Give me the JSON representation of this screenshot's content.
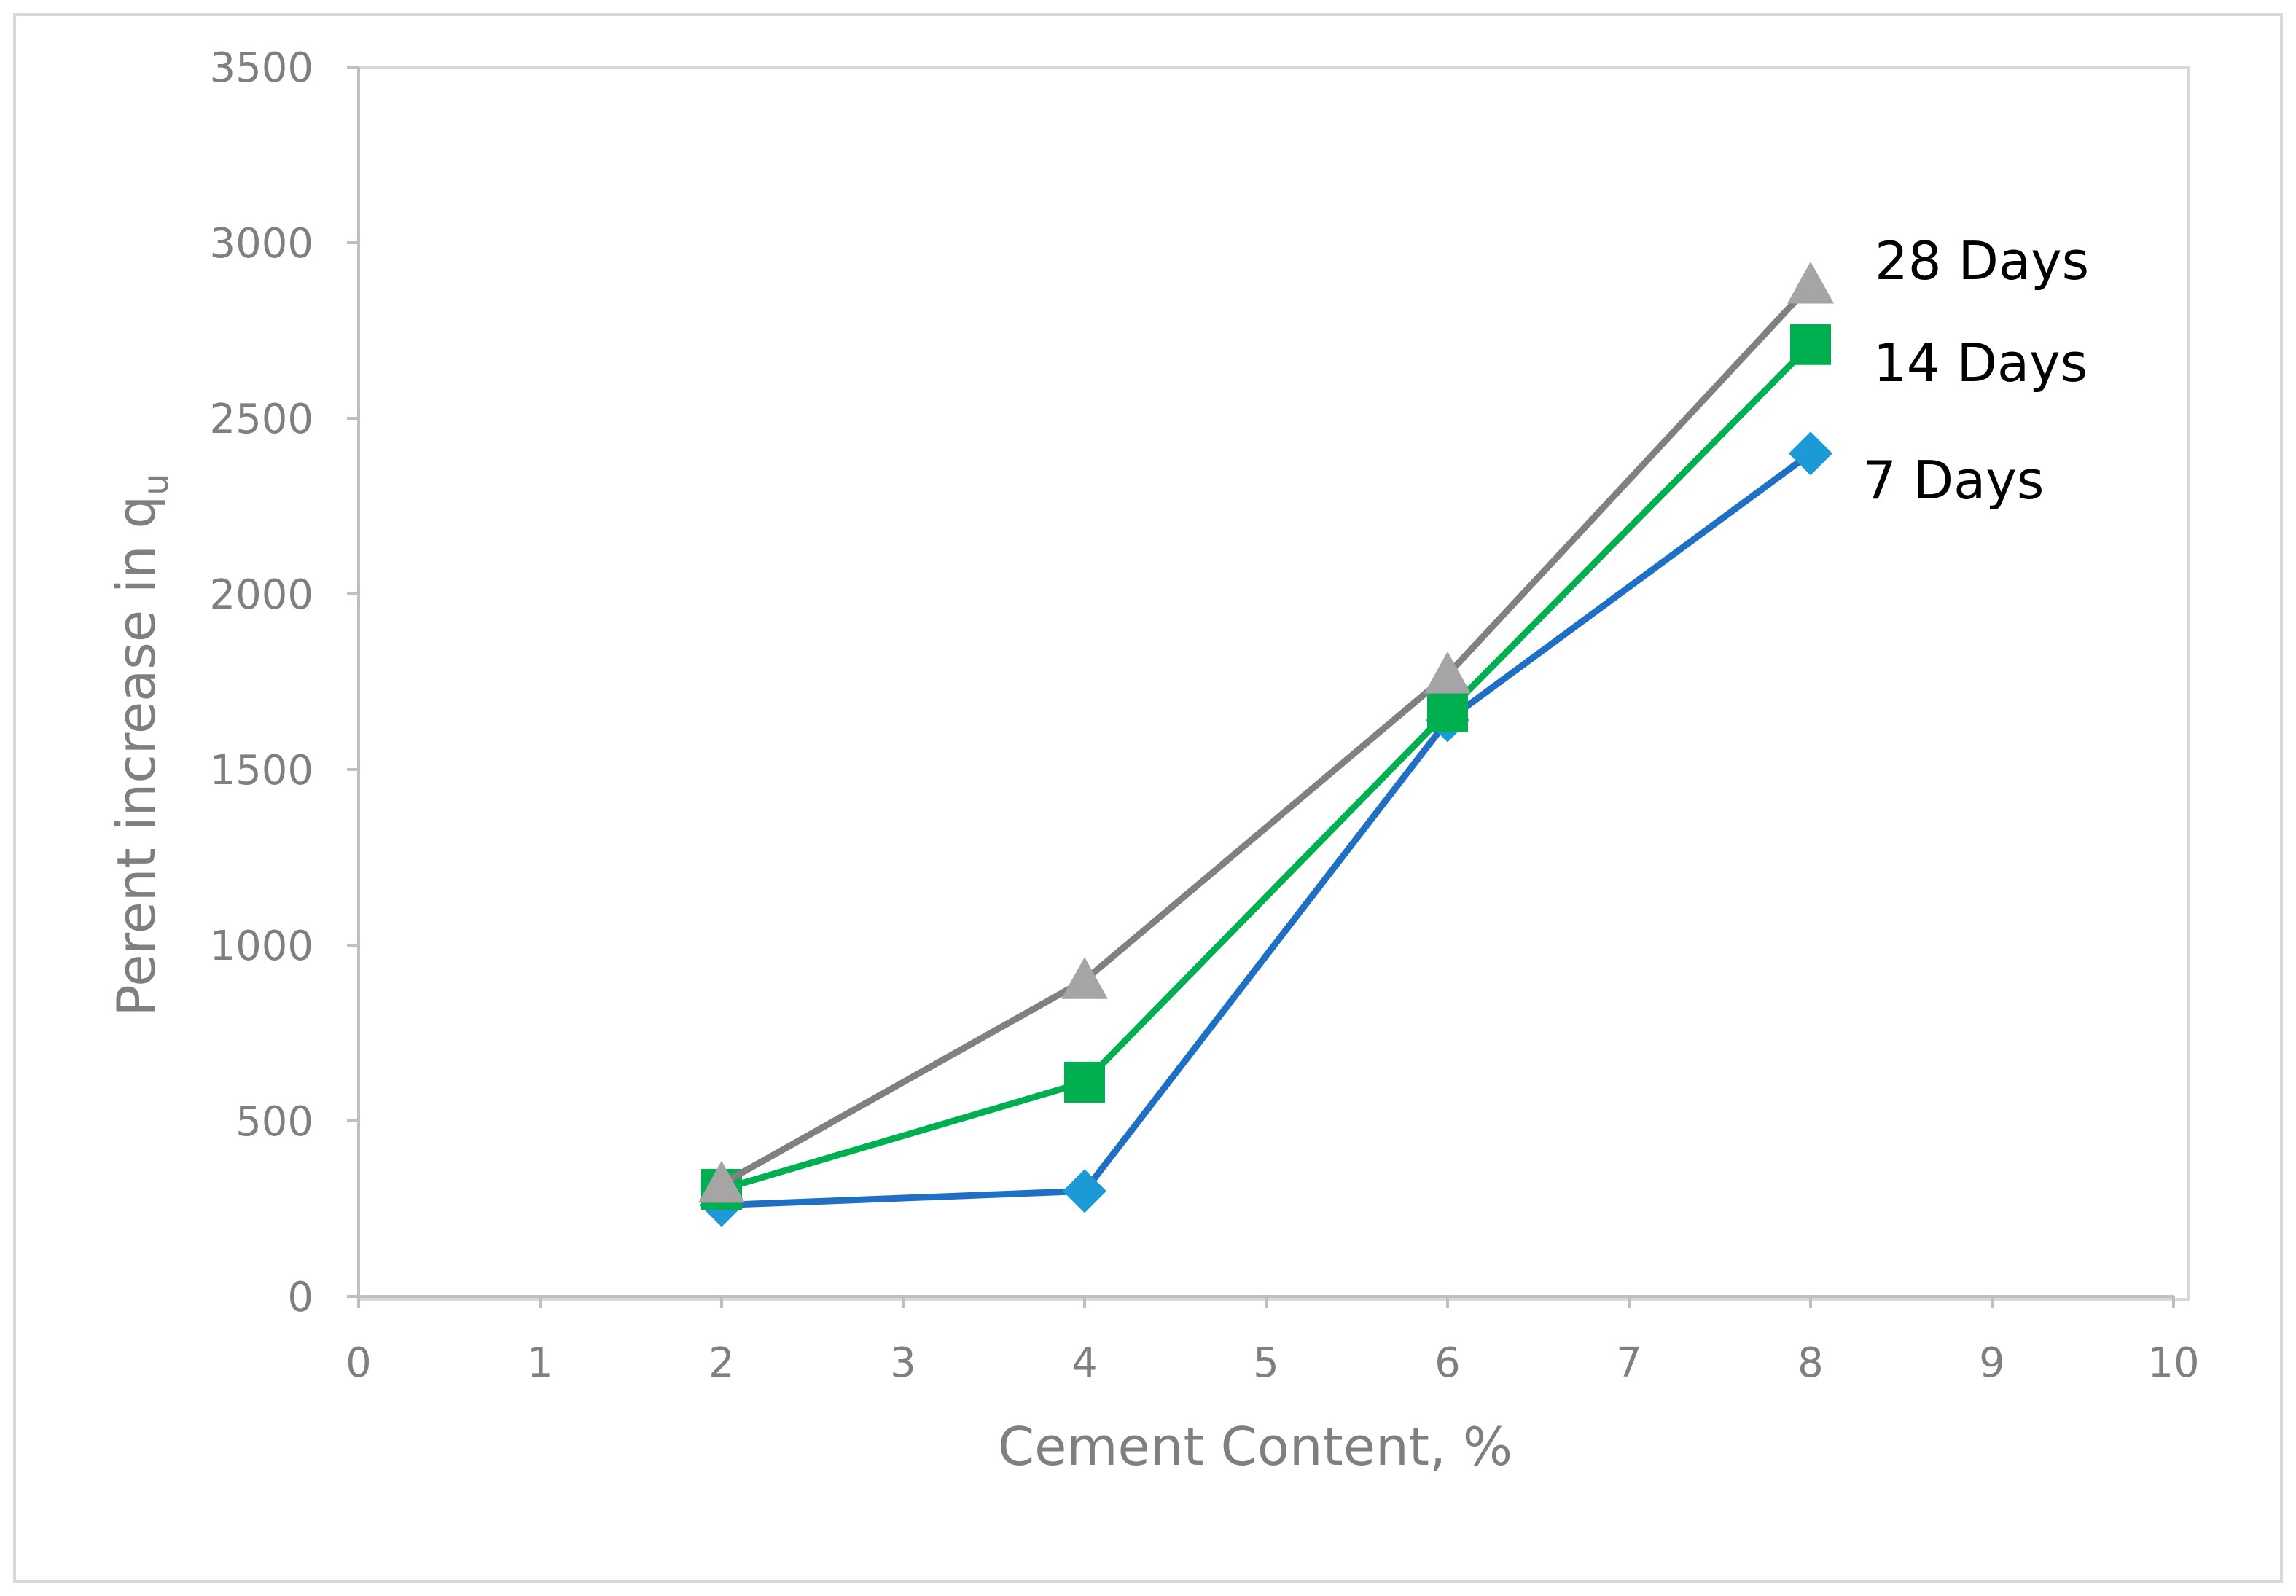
{
  "chart_data": {
    "type": "line",
    "xlabel": "Cement Content, %",
    "ylabel": "Perent increase in q",
    "ylabel_subscript": "u",
    "xlim": [
      0,
      10
    ],
    "ylim": [
      0,
      3500
    ],
    "x_ticks": [
      "0",
      "1",
      "2",
      "3",
      "4",
      "5",
      "6",
      "7",
      "8",
      "9",
      "10"
    ],
    "y_ticks": [
      "0",
      "500",
      "1000",
      "1500",
      "2000",
      "2500",
      "3000",
      "3500"
    ],
    "grid": false,
    "legend": "labels next to last points",
    "series": [
      {
        "name": "7 Days",
        "x": [
          2,
          4,
          6,
          8
        ],
        "values": [
          260,
          300,
          1640,
          2400
        ],
        "line_color": "#1f6fc4",
        "marker": "diamond",
        "marker_color": "#1c9ad6"
      },
      {
        "name": "14 Days",
        "x": [
          2,
          4,
          6,
          8
        ],
        "values": [
          305,
          610,
          1665,
          2710
        ],
        "line_color": "#00b050",
        "marker": "square",
        "marker_color": "#00b050"
      },
      {
        "name": "28 Days",
        "x": [
          2,
          4,
          6,
          8
        ],
        "values": [
          320,
          900,
          1770,
          2880
        ],
        "line_color": "#808080",
        "marker": "triangle",
        "marker_color": "#a5a5a5"
      }
    ]
  }
}
